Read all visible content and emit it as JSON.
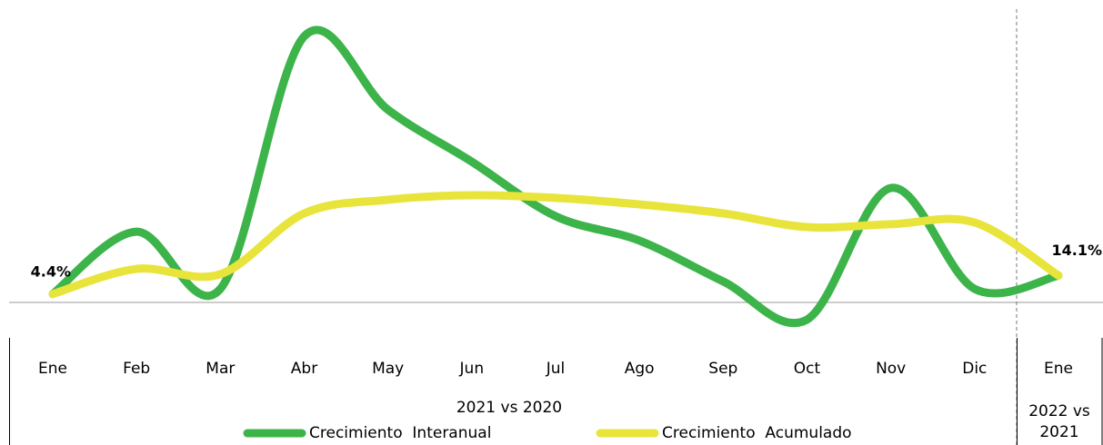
{
  "chart_data": {
    "type": "line",
    "categories": [
      "Ene",
      "Feb",
      "Mar",
      "Abr",
      "May",
      "Jun",
      "Jul",
      "Ago",
      "Sep",
      "Oct",
      "Nov",
      "Dic",
      "Ene"
    ],
    "groups": [
      "2021 vs 2020",
      "2022 vs 2021"
    ],
    "series": [
      {
        "name": "Crecimiento  Interanual",
        "color": "#3cb44a",
        "values": [
          4.4,
          37.1,
          7.1,
          139.5,
          101,
          73.8,
          45.2,
          32.4,
          11,
          -9,
          60,
          7.1,
          14.1
        ]
      },
      {
        "name": "Crecimiento  Acumulado",
        "color": "#e8e43c",
        "values": [
          4.4,
          17.6,
          14.8,
          46.7,
          53.8,
          56.2,
          54.8,
          51.4,
          46.7,
          39.5,
          41,
          41.9,
          14.1
        ],
        "value_labels": [
          "4.4%",
          null,
          null,
          null,
          null,
          null,
          null,
          null,
          null,
          null,
          null,
          null,
          "14.1%"
        ]
      }
    ],
    "ylim": [
      -20,
      140
    ]
  }
}
